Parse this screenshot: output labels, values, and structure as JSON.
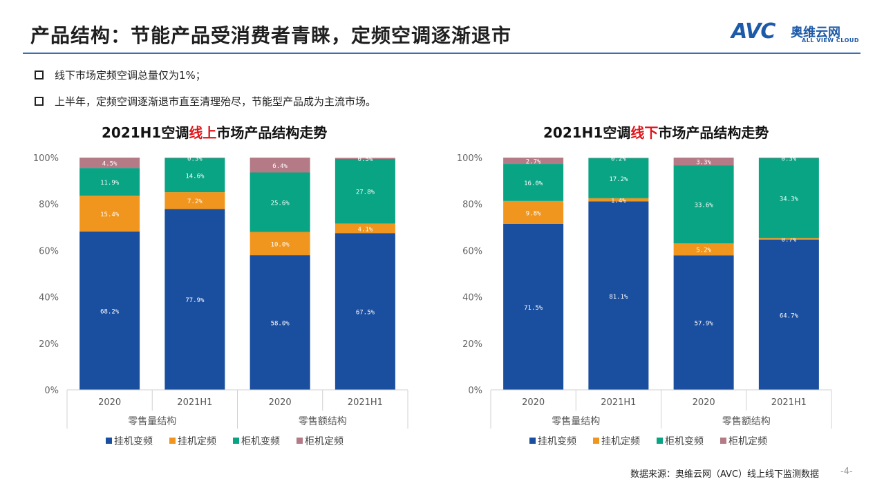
{
  "header": {
    "title": "产品结构：节能产品受消费者青睐，定频空调逐渐退市",
    "logo_main": "AVC",
    "logo_cn": "奥维云网",
    "logo_en": "ALL VIEW CLOUD",
    "accent": "#3a6fb0"
  },
  "bullets": [
    "线下市场定频空调总量仅为1%；",
    "上半年，定频空调逐渐退市直至清理殆尽，节能型产品成为主流市场。"
  ],
  "colors": {
    "hang_var": "#1a4e9e",
    "hang_fix": "#f0961e",
    "cab_var": "#08a484",
    "cab_fix": "#b47a86"
  },
  "chart_data": [
    {
      "type": "bar",
      "stacked": true,
      "title_parts": [
        "2021H1空调",
        "线上",
        "市场产品结构走势"
      ],
      "categories": [
        "2020",
        "2021H1",
        "2020",
        "2021H1"
      ],
      "groups": [
        "零售量结构",
        "零售额结构"
      ],
      "y_ticks": [
        "0%",
        "20%",
        "40%",
        "60%",
        "80%",
        "100%"
      ],
      "ylim": [
        0,
        100
      ],
      "legend_position": "bottom",
      "series": [
        {
          "name": "挂机变频",
          "values": [
            68.2,
            77.9,
            58.0,
            67.5
          ],
          "labels": [
            "68.2%",
            "77.9%",
            "58.0%",
            "67.5%"
          ]
        },
        {
          "name": "挂机定频",
          "values": [
            15.4,
            7.2,
            10.0,
            4.1
          ],
          "labels": [
            "15.4%",
            "7.2%",
            "10.0%",
            "4.1%"
          ]
        },
        {
          "name": "柜机变频",
          "values": [
            11.9,
            14.6,
            25.6,
            27.8
          ],
          "labels": [
            "11.9%",
            "14.6%",
            "25.6%",
            "27.8%"
          ]
        },
        {
          "name": "柜机定频",
          "values": [
            4.5,
            0.3,
            6.4,
            0.5
          ],
          "labels": [
            "4.5%",
            "0.3%",
            "6.4%",
            "0.5%"
          ]
        }
      ]
    },
    {
      "type": "bar",
      "stacked": true,
      "title_parts": [
        "2021H1空调",
        "线下",
        "市场产品结构走势"
      ],
      "categories": [
        "2020",
        "2021H1",
        "2020",
        "2021H1"
      ],
      "groups": [
        "零售量结构",
        "零售额结构"
      ],
      "y_ticks": [
        "0%",
        "20%",
        "40%",
        "60%",
        "80%",
        "100%"
      ],
      "ylim": [
        0,
        100
      ],
      "legend_position": "bottom",
      "series": [
        {
          "name": "挂机变频",
          "values": [
            71.5,
            81.1,
            57.9,
            64.7
          ],
          "labels": [
            "71.5%",
            "81.1%",
            "57.9%",
            "64.7%"
          ]
        },
        {
          "name": "挂机定频",
          "values": [
            9.8,
            1.4,
            5.2,
            0.7
          ],
          "labels": [
            "9.8%",
            "1.4%",
            "5.2%",
            "0.7%"
          ]
        },
        {
          "name": "柜机变频",
          "values": [
            16.0,
            17.2,
            33.6,
            34.3
          ],
          "labels": [
            "16.0%",
            "17.2%",
            "33.6%",
            "34.3%"
          ]
        },
        {
          "name": "柜机定频",
          "values": [
            2.7,
            0.2,
            3.3,
            0.3
          ],
          "labels": [
            "2.7%",
            "0.2%",
            "3.3%",
            "0.3%"
          ]
        }
      ]
    }
  ],
  "footer": {
    "source": "数据来源：奥维云网（AVC）线上线下监测数据",
    "page": "-4-"
  }
}
